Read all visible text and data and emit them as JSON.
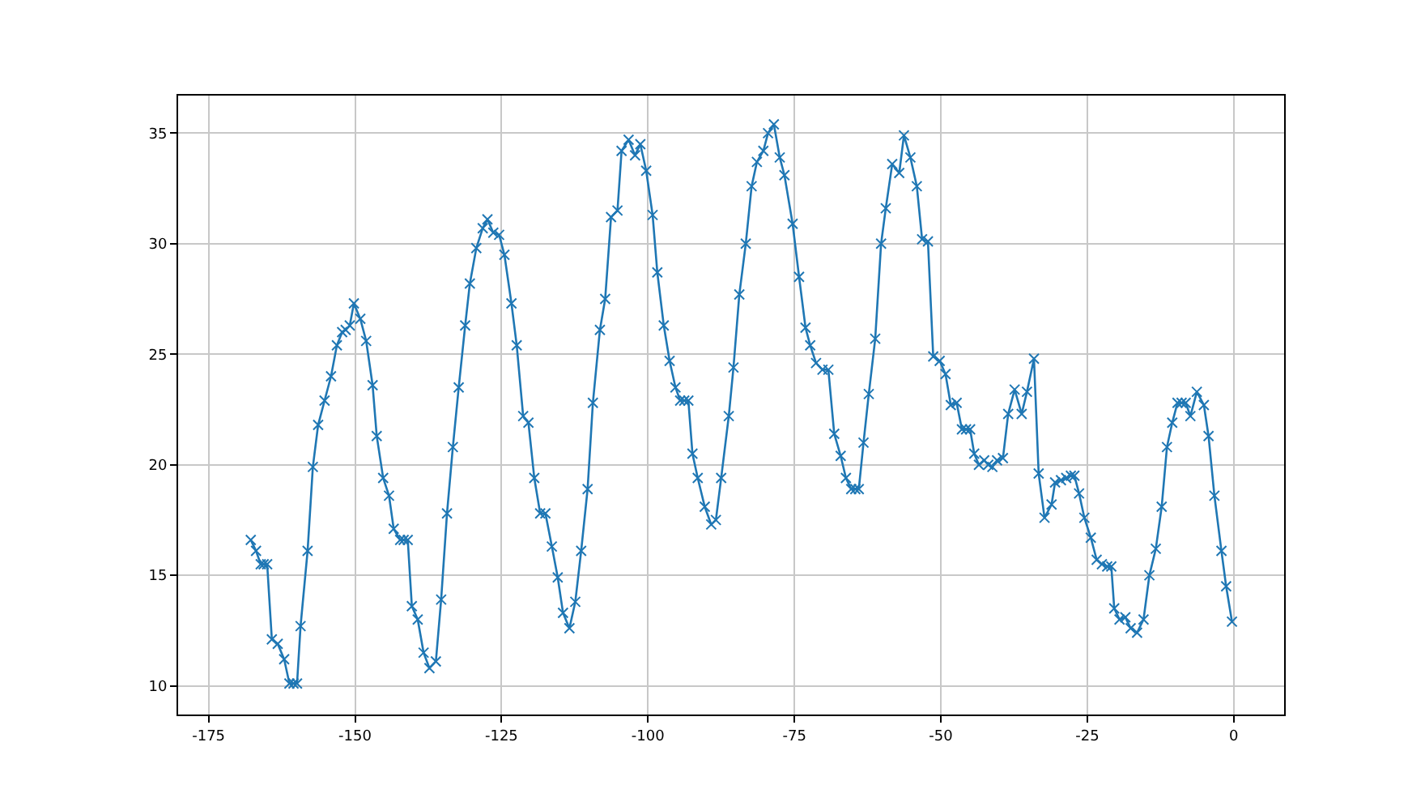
{
  "chart_data": {
    "type": "line",
    "marker": "cross",
    "line_style": "solid",
    "grid": true,
    "xlim": [
      -180.2,
      8.6
    ],
    "xticks": [
      -175,
      -150,
      -125,
      -100,
      -75,
      -50,
      -25,
      0
    ],
    "ylim": [
      8.7,
      36.7
    ],
    "yticks": [
      10,
      15,
      20,
      25,
      30,
      35
    ],
    "x": [
      -167.8,
      -166.9,
      -166.1,
      -165.6,
      -165.0,
      -164.2,
      -163.2,
      -162.1,
      -161.2,
      -160.5,
      -159.9,
      -159.3,
      -158.1,
      -157.2,
      -156.3,
      -155.2,
      -154.1,
      -153.1,
      -152.2,
      -151.6,
      -150.9,
      -150.2,
      -149.1,
      -148.1,
      -147.0,
      -146.3,
      -145.2,
      -144.2,
      -143.4,
      -142.3,
      -141.7,
      -141.0,
      -140.3,
      -139.3,
      -138.3,
      -137.3,
      -136.2,
      -135.3,
      -134.3,
      -133.3,
      -132.3,
      -131.2,
      -130.4,
      -129.3,
      -128.2,
      -127.4,
      -126.4,
      -125.4,
      -124.5,
      -123.3,
      -122.4,
      -121.3,
      -120.4,
      -119.4,
      -118.4,
      -117.5,
      -116.4,
      -115.4,
      -114.5,
      -113.4,
      -112.4,
      -111.4,
      -110.3,
      -109.4,
      -108.2,
      -107.3,
      -106.3,
      -105.2,
      -104.5,
      -103.3,
      -102.2,
      -101.3,
      -100.3,
      -99.2,
      -98.4,
      -97.3,
      -96.3,
      -95.3,
      -94.5,
      -93.8,
      -93.1,
      -92.4,
      -91.5,
      -90.3,
      -89.2,
      -88.4,
      -87.5,
      -86.2,
      -85.4,
      -84.4,
      -83.3,
      -82.3,
      -81.4,
      -80.3,
      -79.5,
      -78.5,
      -77.5,
      -76.7,
      -75.3,
      -74.2,
      -73.1,
      -72.3,
      -71.3,
      -70.2,
      -69.2,
      -68.2,
      -67.1,
      -66.2,
      -65.3,
      -64.6,
      -64.0,
      -63.2,
      -62.3,
      -61.2,
      -60.2,
      -59.4,
      -58.3,
      -57.1,
      -56.3,
      -55.2,
      -54.1,
      -53.2,
      -52.2,
      -51.3,
      -50.2,
      -49.2,
      -48.3,
      -47.3,
      -46.4,
      -45.7,
      -45.0,
      -44.3,
      -43.5,
      -42.6,
      -41.9,
      -41.2,
      -40.4,
      -39.4,
      -38.5,
      -37.4,
      -36.2,
      -35.3,
      -34.1,
      -33.3,
      -32.3,
      -31.1,
      -30.5,
      -29.5,
      -28.6,
      -27.8,
      -27.2,
      -26.4,
      -25.5,
      -24.4,
      -23.4,
      -22.5,
      -21.6,
      -20.9,
      -20.4,
      -19.5,
      -18.5,
      -17.6,
      -16.5,
      -15.4,
      -14.4,
      -13.3,
      -12.3,
      -11.4,
      -10.5,
      -9.6,
      -8.9,
      -8.2,
      -7.4,
      -6.3,
      -5.1,
      -4.3,
      -3.3,
      -2.1,
      -1.3,
      -0.3
    ],
    "series": [
      {
        "color": "#1f77b4",
        "values": [
          16.6,
          16.1,
          15.5,
          15.5,
          15.5,
          12.1,
          11.9,
          11.2,
          10.1,
          10.1,
          10.1,
          12.7,
          16.1,
          19.9,
          21.8,
          22.9,
          24.0,
          25.4,
          26.0,
          26.1,
          26.3,
          27.3,
          26.6,
          25.6,
          23.6,
          21.3,
          19.4,
          18.6,
          17.1,
          16.6,
          16.6,
          16.6,
          13.6,
          13.0,
          11.5,
          10.8,
          11.1,
          13.9,
          17.8,
          20.8,
          23.5,
          26.3,
          28.2,
          29.8,
          30.7,
          31.1,
          30.5,
          30.4,
          29.5,
          27.3,
          25.4,
          22.2,
          21.9,
          19.4,
          17.8,
          17.8,
          16.3,
          14.9,
          13.3,
          12.6,
          13.8,
          16.1,
          18.9,
          22.8,
          26.1,
          27.5,
          31.2,
          31.5,
          34.2,
          34.7,
          34.0,
          34.5,
          33.3,
          31.3,
          28.7,
          26.3,
          24.7,
          23.5,
          22.9,
          22.9,
          22.9,
          20.5,
          19.4,
          18.1,
          17.3,
          17.5,
          19.4,
          22.2,
          24.4,
          27.7,
          30.0,
          32.6,
          33.7,
          34.2,
          35.0,
          35.4,
          33.9,
          33.1,
          30.9,
          28.5,
          26.2,
          25.4,
          24.6,
          24.3,
          24.3,
          21.4,
          20.4,
          19.4,
          18.9,
          18.9,
          18.9,
          21.0,
          23.2,
          25.7,
          30.0,
          31.6,
          33.6,
          33.2,
          34.9,
          33.9,
          32.6,
          30.2,
          30.1,
          24.9,
          24.7,
          24.1,
          22.7,
          22.8,
          21.6,
          21.6,
          21.6,
          20.5,
          20.0,
          20.2,
          20.0,
          19.9,
          20.2,
          20.3,
          22.3,
          23.4,
          22.3,
          23.3,
          24.8,
          19.6,
          17.6,
          18.2,
          19.2,
          19.3,
          19.4,
          19.5,
          19.5,
          18.7,
          17.6,
          16.7,
          15.7,
          15.5,
          15.4,
          15.4,
          13.5,
          13.0,
          13.1,
          12.6,
          12.4,
          13.0,
          15.0,
          16.2,
          18.1,
          20.8,
          21.9,
          22.8,
          22.8,
          22.8,
          22.2,
          23.3,
          22.7,
          21.3,
          18.6,
          16.1,
          14.5,
          12.9
        ]
      }
    ]
  }
}
